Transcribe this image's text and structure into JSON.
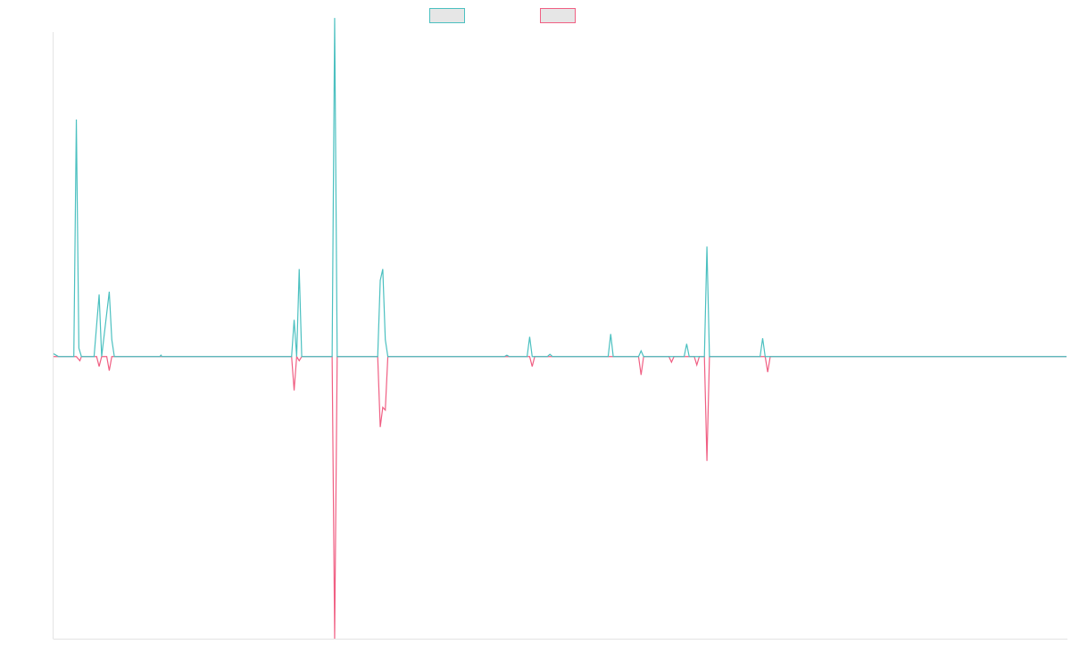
{
  "chart_data": {
    "type": "line",
    "title": "",
    "xlabel": "",
    "ylabel": "",
    "legend_position": "top-center",
    "grid": false,
    "x_count": 200,
    "ylim": [
      -1,
      1.15
    ],
    "series": [
      {
        "color": "#4bc0c0",
        "fill": "#e6e6e6",
        "points": [
          [
            0,
            0.01
          ],
          [
            1,
            0
          ],
          [
            4,
            0
          ],
          [
            4.5,
            0.84
          ],
          [
            5,
            0.03
          ],
          [
            5.5,
            0
          ],
          [
            8,
            0
          ],
          [
            9,
            0.22
          ],
          [
            9.5,
            0
          ],
          [
            11,
            0.23
          ],
          [
            11.5,
            0.06
          ],
          [
            12,
            0
          ],
          [
            21,
            0
          ],
          [
            21.2,
            0.005
          ],
          [
            21.4,
            0
          ],
          [
            47,
            0
          ],
          [
            47.5,
            0.13
          ],
          [
            48,
            0
          ],
          [
            48.5,
            0.31
          ],
          [
            49,
            0
          ],
          [
            55,
            0
          ],
          [
            55.5,
            1.2
          ],
          [
            56,
            0
          ],
          [
            64,
            0
          ],
          [
            64.5,
            0.27
          ],
          [
            65,
            0.31
          ],
          [
            65.5,
            0.06
          ],
          [
            66,
            0
          ],
          [
            89,
            0
          ],
          [
            89.5,
            0.005
          ],
          [
            90,
            0
          ],
          [
            93.5,
            0
          ],
          [
            94,
            0.07
          ],
          [
            94.5,
            0
          ],
          [
            97.5,
            0
          ],
          [
            98,
            0.008
          ],
          [
            98.5,
            0
          ],
          [
            109.5,
            0
          ],
          [
            110,
            0.08
          ],
          [
            110.5,
            0
          ],
          [
            115.5,
            0
          ],
          [
            116,
            0.02
          ],
          [
            116.5,
            0
          ],
          [
            124.5,
            0
          ],
          [
            125,
            0.045
          ],
          [
            125.5,
            0
          ],
          [
            128.5,
            0
          ],
          [
            129,
            0.39
          ],
          [
            129.5,
            0
          ],
          [
            139.5,
            0
          ],
          [
            140,
            0.065
          ],
          [
            140.5,
            0
          ],
          [
            200,
            0
          ]
        ]
      },
      {
        "color": "#f05f83",
        "fill": "#e6e6e6",
        "points": [
          [
            0,
            0
          ],
          [
            4.5,
            0
          ],
          [
            5.2,
            -0.015
          ],
          [
            5.5,
            0
          ],
          [
            8.5,
            0
          ],
          [
            9,
            -0.035
          ],
          [
            9.5,
            0
          ],
          [
            10.5,
            0
          ],
          [
            11,
            -0.05
          ],
          [
            11.5,
            0
          ],
          [
            47,
            0
          ],
          [
            47.5,
            -0.12
          ],
          [
            48,
            0
          ],
          [
            48.5,
            -0.015
          ],
          [
            49,
            0
          ],
          [
            55,
            0
          ],
          [
            55.5,
            -1.0
          ],
          [
            56,
            0
          ],
          [
            64,
            0
          ],
          [
            64.5,
            -0.25
          ],
          [
            65,
            -0.18
          ],
          [
            65.5,
            -0.19
          ],
          [
            66,
            0
          ],
          [
            94,
            0
          ],
          [
            94.5,
            -0.035
          ],
          [
            95,
            0
          ],
          [
            115.5,
            0
          ],
          [
            116,
            -0.065
          ],
          [
            116.5,
            0
          ],
          [
            121.5,
            0
          ],
          [
            122,
            -0.02
          ],
          [
            122.5,
            0
          ],
          [
            126.5,
            0
          ],
          [
            127,
            -0.03
          ],
          [
            127.5,
            0
          ],
          [
            128.5,
            0
          ],
          [
            129,
            -0.37
          ],
          [
            129.5,
            0
          ],
          [
            140.5,
            0
          ],
          [
            141,
            -0.055
          ],
          [
            141.5,
            0
          ],
          [
            200,
            0
          ]
        ]
      }
    ]
  }
}
